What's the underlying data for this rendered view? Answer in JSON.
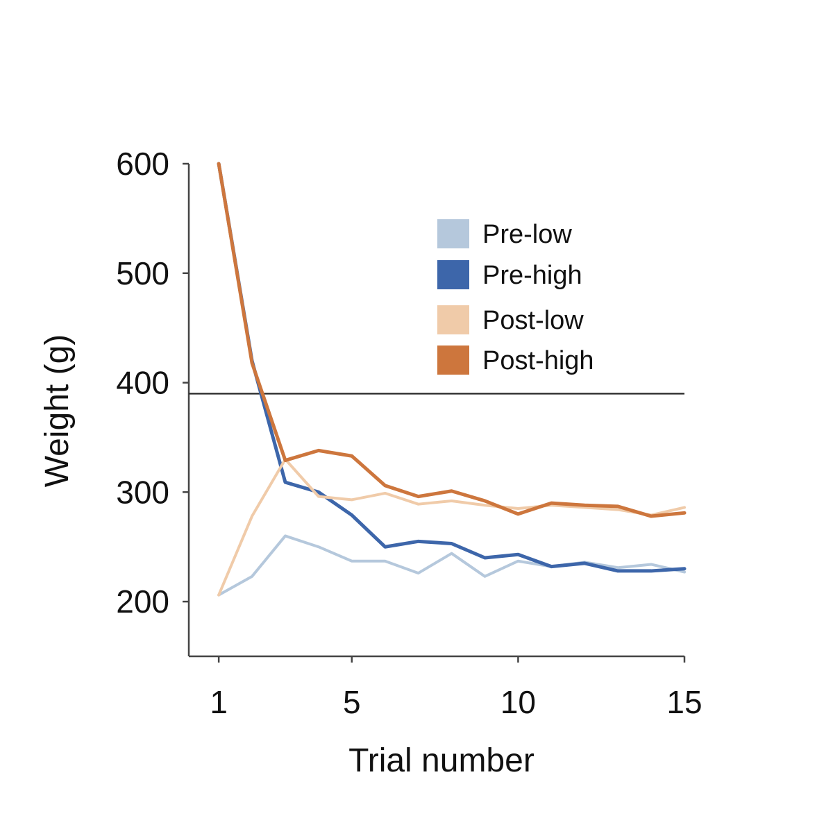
{
  "chart_data": {
    "type": "line",
    "xlabel": "Trial number",
    "ylabel": "Weight (g)",
    "xlim": [
      0.1,
      15
    ],
    "ylim": [
      150,
      600
    ],
    "xticks": [
      1,
      5,
      10,
      15
    ],
    "yticks": [
      200,
      300,
      400,
      500,
      600
    ],
    "reference_line_y": 390,
    "legend_position": "top-right",
    "grid": false,
    "x": [
      1,
      2,
      3,
      4,
      5,
      6,
      7,
      8,
      9,
      10,
      11,
      12,
      13,
      14,
      15
    ],
    "series": [
      {
        "name": "Pre-low",
        "color": "#b5c8dc",
        "values": [
          206,
          223,
          260,
          250,
          237,
          237,
          226,
          244,
          223,
          237,
          232,
          236,
          231,
          234,
          227
        ]
      },
      {
        "name": "Pre-high",
        "color": "#3d66aa",
        "values": [
          600,
          420,
          309,
          300,
          279,
          250,
          255,
          253,
          240,
          243,
          232,
          235,
          228,
          228,
          230
        ]
      },
      {
        "name": "Post-low",
        "color": "#f0cba9",
        "values": [
          206,
          278,
          330,
          296,
          293,
          299,
          289,
          292,
          288,
          285,
          288,
          286,
          284,
          279,
          286
        ]
      },
      {
        "name": "Post-high",
        "color": "#cd763d",
        "values": [
          600,
          418,
          329,
          338,
          333,
          306,
          296,
          301,
          292,
          280,
          290,
          288,
          287,
          278,
          281
        ]
      }
    ]
  }
}
